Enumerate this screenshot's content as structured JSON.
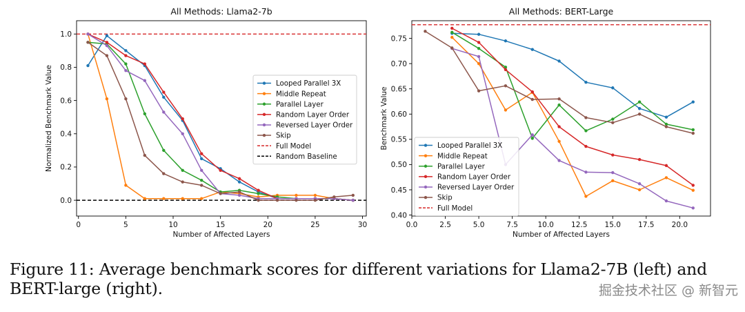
{
  "chart_data": [
    {
      "type": "line",
      "title": "All Methods: Llama2-7b",
      "xlabel": "Number of Affected Layers",
      "ylabel": "Normalized Benchmark Value",
      "xlim": [
        -0.2,
        30.4
      ],
      "ylim": [
        -0.095,
        1.08
      ],
      "xticks": [
        0,
        5,
        10,
        15,
        20,
        25,
        30
      ],
      "yticks": [
        0.0,
        0.2,
        0.4,
        0.6,
        0.8,
        1.0
      ],
      "xtick_labels": [
        "0",
        "5",
        "10",
        "15",
        "20",
        "25",
        "30"
      ],
      "ytick_labels": [
        "0.0",
        "0.2",
        "0.4",
        "0.6",
        "0.8",
        "1.0"
      ],
      "legend_position": "center-right",
      "series": [
        {
          "name": "Looped Parallel 3X",
          "color": "#1f77b4",
          "x": [
            1,
            3,
            5,
            7,
            9,
            11,
            13,
            15,
            17,
            19,
            21,
            23,
            25,
            27,
            29
          ],
          "y": [
            0.81,
            0.99,
            0.9,
            0.81,
            0.62,
            0.48,
            0.25,
            0.19,
            0.11,
            0.05,
            0.01,
            0.01,
            0.01,
            0.01,
            0.0
          ]
        },
        {
          "name": "Middle Repeat",
          "color": "#ff7f0e",
          "x": [
            1,
            3,
            5,
            7,
            9,
            11,
            13,
            15,
            17,
            19,
            21,
            23,
            25,
            27,
            29
          ],
          "y": [
            1.0,
            0.61,
            0.09,
            0.01,
            0.01,
            0.01,
            0.01,
            0.05,
            0.04,
            0.02,
            0.03,
            0.03,
            0.03,
            0.01,
            0.0
          ]
        },
        {
          "name": "Parallel Layer",
          "color": "#2ca02c",
          "x": [
            1,
            3,
            5,
            7,
            9,
            11,
            13,
            15,
            17,
            19,
            21,
            23,
            25,
            27,
            29
          ],
          "y": [
            0.95,
            0.94,
            0.82,
            0.52,
            0.3,
            0.18,
            0.12,
            0.05,
            0.06,
            0.04,
            0.02,
            0.01,
            0.01,
            0.01,
            0.0
          ]
        },
        {
          "name": "Random Layer Order",
          "color": "#d62728",
          "x": [
            1,
            3,
            5,
            7,
            9,
            11,
            13,
            15,
            17,
            19,
            21,
            23,
            25,
            27,
            29
          ],
          "y": [
            1.0,
            0.95,
            0.87,
            0.82,
            0.65,
            0.49,
            0.28,
            0.18,
            0.13,
            0.06,
            0.01,
            0.01,
            0.01,
            0.01,
            0.0
          ]
        },
        {
          "name": "Reversed Layer Order",
          "color": "#9467bd",
          "x": [
            1,
            3,
            5,
            7,
            9,
            11,
            13,
            15,
            17,
            19,
            21,
            23,
            25,
            27,
            29
          ],
          "y": [
            1.0,
            0.93,
            0.78,
            0.72,
            0.53,
            0.4,
            0.18,
            0.04,
            0.03,
            0.01,
            0.01,
            0.01,
            0.01,
            0.01,
            0.0
          ]
        },
        {
          "name": "Skip",
          "color": "#8c564b",
          "x": [
            1,
            3,
            5,
            7,
            9,
            11,
            13,
            15,
            17,
            19,
            21,
            23,
            25,
            27,
            29
          ],
          "y": [
            0.95,
            0.87,
            0.61,
            0.27,
            0.16,
            0.11,
            0.09,
            0.04,
            0.05,
            0.0,
            0.0,
            0.0,
            0.0,
            0.02,
            0.03
          ]
        }
      ],
      "hlines": [
        {
          "name": "Full Model",
          "y": 1.0,
          "color": "#d62728",
          "style": "dashed"
        },
        {
          "name": "Random Baseline",
          "y": 0.0,
          "color": "#000000",
          "style": "dashed"
        }
      ]
    },
    {
      "type": "line",
      "title": "All Methods: BERT-Large",
      "xlabel": "Number of Affected Layers",
      "ylabel": "Benchmark Value",
      "xlim": [
        0.0,
        22.3
      ],
      "ylim": [
        0.398,
        0.785
      ],
      "xticks": [
        0.0,
        2.5,
        5.0,
        7.5,
        10.0,
        12.5,
        15.0,
        17.5,
        20.0
      ],
      "yticks": [
        0.4,
        0.45,
        0.5,
        0.55,
        0.6,
        0.65,
        0.7,
        0.75
      ],
      "xtick_labels": [
        "0.0",
        "2.5",
        "5.0",
        "7.5",
        "10.0",
        "12.5",
        "15.0",
        "17.5",
        "20.0"
      ],
      "ytick_labels": [
        "0.40",
        "0.45",
        "0.50",
        "0.55",
        "0.60",
        "0.65",
        "0.70",
        "0.75"
      ],
      "legend_position": "lower-left",
      "series": [
        {
          "name": "Looped Parallel 3X",
          "color": "#1f77b4",
          "x": [
            3,
            5,
            7,
            9,
            11,
            13,
            15,
            17,
            19,
            21
          ],
          "y": [
            0.76,
            0.758,
            0.745,
            0.728,
            0.705,
            0.663,
            0.652,
            0.611,
            0.594,
            0.624
          ]
        },
        {
          "name": "Middle Repeat",
          "color": "#ff7f0e",
          "x": [
            3,
            5,
            7,
            9,
            11,
            13,
            15,
            17,
            19,
            21
          ],
          "y": [
            0.752,
            0.7,
            0.608,
            0.643,
            0.546,
            0.437,
            0.468,
            0.45,
            0.474,
            0.449
          ]
        },
        {
          "name": "Parallel Layer",
          "color": "#2ca02c",
          "x": [
            3,
            5,
            7,
            9,
            11,
            13,
            15,
            17,
            19,
            21
          ],
          "y": [
            0.762,
            0.73,
            0.693,
            0.552,
            0.618,
            0.567,
            0.59,
            0.624,
            0.58,
            0.569
          ]
        },
        {
          "name": "Random Layer Order",
          "color": "#d62728",
          "x": [
            3,
            5,
            7,
            9,
            11,
            13,
            15,
            17,
            19,
            21
          ],
          "y": [
            0.77,
            0.742,
            0.688,
            0.644,
            0.575,
            0.536,
            0.519,
            0.51,
            0.498,
            0.459
          ]
        },
        {
          "name": "Reversed Layer Order",
          "color": "#9467bd",
          "x": [
            3,
            5,
            7,
            9,
            11,
            13,
            15,
            17,
            19,
            21
          ],
          "y": [
            0.73,
            0.714,
            0.5,
            0.559,
            0.508,
            0.485,
            0.484,
            0.462,
            0.428,
            0.414
          ]
        },
        {
          "name": "Skip",
          "color": "#8c564b",
          "x": [
            1,
            3,
            5,
            7,
            9,
            11,
            13,
            15,
            17,
            19,
            21
          ],
          "y": [
            0.764,
            0.731,
            0.646,
            0.656,
            0.629,
            0.63,
            0.593,
            0.583,
            0.6,
            0.575,
            0.562
          ]
        }
      ],
      "hlines": [
        {
          "name": "Full Model",
          "y": 0.777,
          "color": "#d62728",
          "style": "dashed"
        }
      ]
    }
  ],
  "caption": "Figure 11: Average benchmark scores for different variations for Llama2-7B (left) and BERT-large (right).",
  "watermark": "掘金技术社区 @ 新智元"
}
